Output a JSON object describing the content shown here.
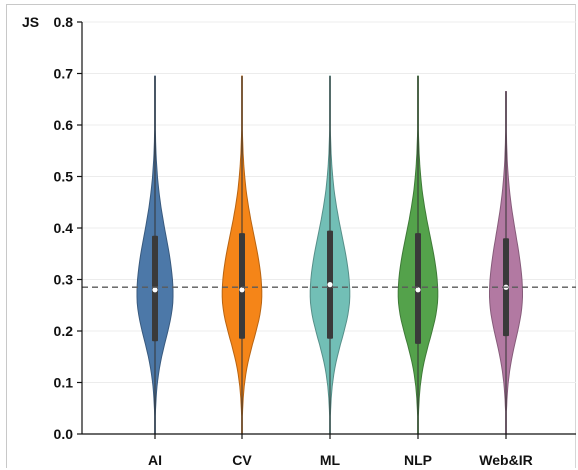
{
  "chart_data": {
    "type": "violin",
    "title": "",
    "xlabel": "",
    "ylabel": "JS",
    "ylim": [
      0,
      0.8
    ],
    "yticks": [
      "0.0",
      "0.1",
      "0.2",
      "0.3",
      "0.4",
      "0.5",
      "0.6",
      "0.7",
      "0.8"
    ],
    "reference_line": 0.285,
    "categories": [
      "AI",
      "CV",
      "ML",
      "NLP",
      "Web&IR"
    ],
    "series": [
      {
        "category": "AI",
        "color": "#4c78a8",
        "min": 0.0,
        "max": 0.695,
        "q1": 0.18,
        "median": 0.28,
        "q3": 0.385,
        "mode": 0.27,
        "max_halfwidth": 0.82
      },
      {
        "category": "CV",
        "color": "#f58518",
        "min": 0.0,
        "max": 0.695,
        "q1": 0.185,
        "median": 0.28,
        "q3": 0.39,
        "mode": 0.27,
        "max_halfwidth": 0.9
      },
      {
        "category": "ML",
        "color": "#72bfb6",
        "min": 0.0,
        "max": 0.695,
        "q1": 0.185,
        "median": 0.29,
        "q3": 0.395,
        "mode": 0.27,
        "max_halfwidth": 0.9
      },
      {
        "category": "NLP",
        "color": "#54a24b",
        "min": 0.0,
        "max": 0.695,
        "q1": 0.175,
        "median": 0.28,
        "q3": 0.39,
        "mode": 0.27,
        "max_halfwidth": 0.9
      },
      {
        "category": "Web&IR",
        "color": "#b279a2",
        "min": 0.0,
        "max": 0.665,
        "q1": 0.19,
        "median": 0.285,
        "q3": 0.38,
        "mode": 0.27,
        "max_halfwidth": 0.75
      }
    ],
    "grid": true,
    "legend": "none"
  }
}
